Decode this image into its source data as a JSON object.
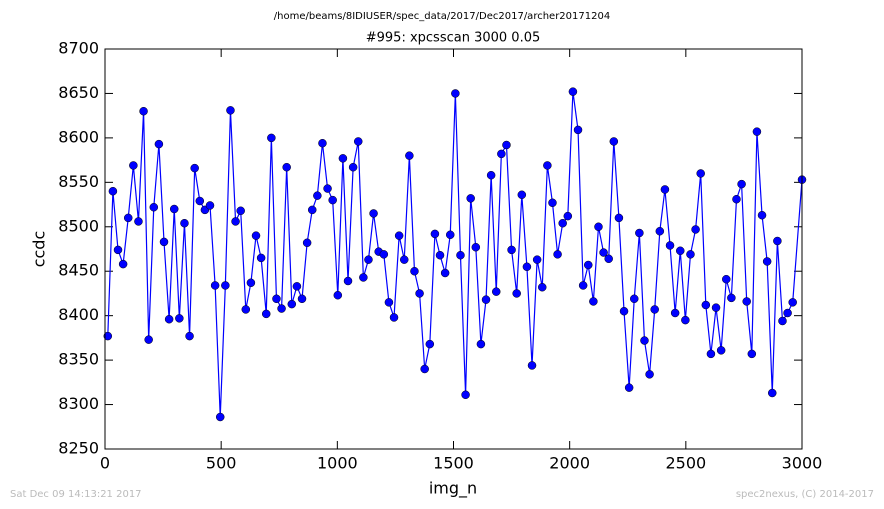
{
  "chart_data": {
    "type": "line",
    "suptitle": "/home/beams/8IDIUSER/spec_data/2017/Dec2017/archer20171204",
    "title": "#995: xpcsscan 3000 0.05",
    "xlabel": "img_n",
    "ylabel": "ccdc",
    "footer_left": "Sat Dec 09 14:13:21 2017",
    "footer_right": "spec2nexus, (C) 2014-2017",
    "x": [
      12,
      34,
      56,
      78,
      100,
      122,
      144,
      166,
      188,
      210,
      232,
      254,
      276,
      298,
      320,
      342,
      364,
      386,
      408,
      430,
      452,
      474,
      496,
      518,
      540,
      562,
      584,
      606,
      628,
      650,
      672,
      694,
      716,
      738,
      760,
      782,
      804,
      826,
      848,
      870,
      892,
      914,
      936,
      958,
      980,
      1002,
      1024,
      1046,
      1068,
      1090,
      1112,
      1134,
      1156,
      1178,
      1200,
      1222,
      1244,
      1266,
      1288,
      1310,
      1332,
      1354,
      1376,
      1398,
      1420,
      1442,
      1464,
      1486,
      1508,
      1530,
      1552,
      1574,
      1596,
      1618,
      1640,
      1662,
      1684,
      1706,
      1728,
      1750,
      1772,
      1794,
      1816,
      1838,
      1860,
      1882,
      1904,
      1926,
      1948,
      1970,
      1992,
      2014,
      2036,
      2058,
      2080,
      2102,
      2124,
      2146,
      2168,
      2190,
      2212,
      2234,
      2256,
      2278,
      2300,
      2322,
      2344,
      2366,
      2388,
      2410,
      2432,
      2454,
      2476,
      2498,
      2520,
      2542,
      2564,
      2586,
      2608,
      2630,
      2652,
      2674,
      2696,
      2718,
      2740,
      2762,
      2784,
      2806,
      2828,
      2850,
      2872,
      2894,
      2916,
      2938,
      2960,
      3000
    ],
    "series": [
      {
        "color": "#0000ff",
        "values": [
          8377,
          8540,
          8474,
          8458,
          8510,
          8569,
          8506,
          8630,
          8373,
          8522,
          8593,
          8483,
          8396,
          8520,
          8397,
          8504,
          8377,
          8566,
          8529,
          8519,
          8524,
          8434,
          8286,
          8434,
          8631,
          8506,
          8518,
          8407,
          8437,
          8490,
          8465,
          8402,
          8600,
          8419,
          8408,
          8567,
          8413,
          8433,
          8419,
          8482,
          8519,
          8535,
          8594,
          8543,
          8530,
          8423,
          8577,
          8439,
          8567,
          8596,
          8443,
          8463,
          8515,
          8472,
          8469,
          8415,
          8398,
          8490,
          8463,
          8580,
          8450,
          8425,
          8340,
          8368,
          8492,
          8468,
          8448,
          8491,
          8650,
          8468,
          8311,
          8532,
          8477,
          8368,
          8418,
          8558,
          8427,
          8582,
          8592,
          8474,
          8425,
          8536,
          8455,
          8344,
          8463,
          8432,
          8569,
          8527,
          8469,
          8504,
          8512,
          8652,
          8609,
          8434,
          8457,
          8416,
          8500,
          8471,
          8464,
          8596,
          8510,
          8405,
          8319,
          8419,
          8493,
          8372,
          8334,
          8407,
          8495,
          8542,
          8479,
          8403,
          8473,
          8395,
          8469,
          8497,
          8560,
          8412,
          8357,
          8409,
          8361,
          8441,
          8420,
          8531,
          8548,
          8416,
          8357,
          8607,
          8513,
          8461,
          8313,
          8484,
          8394,
          8403,
          8415,
          8553
        ]
      }
    ],
    "xlim": [
      0,
      3000
    ],
    "xticks": [
      0,
      500,
      1000,
      1500,
      2000,
      2500,
      3000
    ],
    "ylim": [
      8250,
      8700
    ],
    "yticks": [
      8250,
      8300,
      8350,
      8400,
      8450,
      8500,
      8550,
      8600,
      8650,
      8700
    ]
  }
}
